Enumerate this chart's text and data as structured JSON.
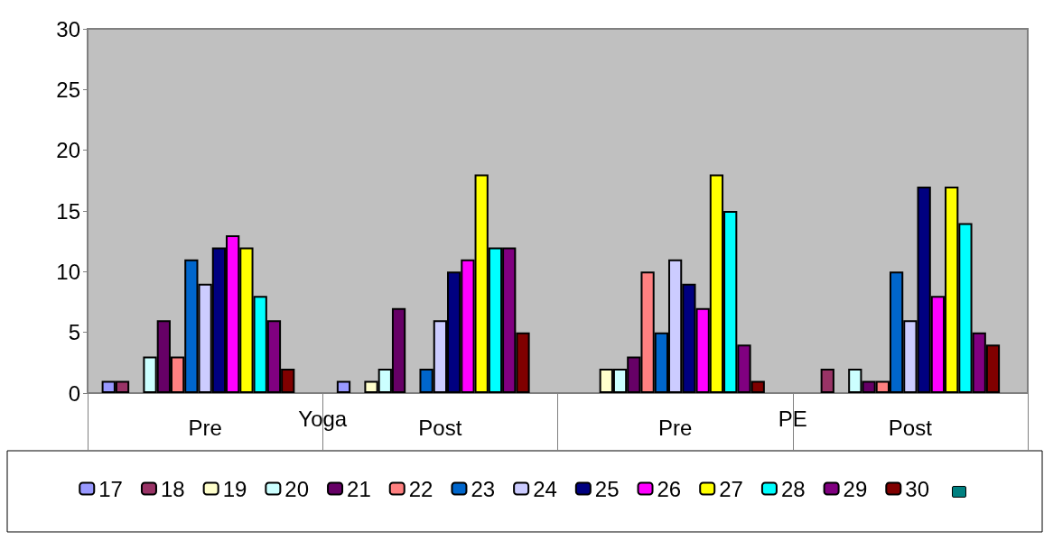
{
  "chart_data": {
    "type": "bar",
    "categories": [
      "Pre",
      "Post",
      "Pre",
      "Post"
    ],
    "annotations": [
      "Yoga",
      "PE"
    ],
    "series": [
      {
        "name": "17",
        "color": "#9999ff",
        "values": [
          1,
          1,
          0,
          0
        ]
      },
      {
        "name": "18",
        "color": "#993366",
        "values": [
          1,
          0,
          0,
          2
        ]
      },
      {
        "name": "19",
        "color": "#ffffcc",
        "values": [
          0,
          1,
          2,
          0
        ]
      },
      {
        "name": "20",
        "color": "#ccffff",
        "values": [
          3,
          2,
          2,
          2
        ]
      },
      {
        "name": "21",
        "color": "#660066",
        "values": [
          6,
          7,
          3,
          1
        ]
      },
      {
        "name": "22",
        "color": "#ff8080",
        "values": [
          3,
          0,
          10,
          1
        ]
      },
      {
        "name": "23",
        "color": "#0066cc",
        "values": [
          11,
          2,
          5,
          10
        ]
      },
      {
        "name": "24",
        "color": "#ccccff",
        "values": [
          9,
          6,
          11,
          6
        ]
      },
      {
        "name": "25",
        "color": "#000080",
        "values": [
          12,
          10,
          9,
          17
        ]
      },
      {
        "name": "26",
        "color": "#ff00ff",
        "values": [
          13,
          11,
          7,
          8
        ]
      },
      {
        "name": "27",
        "color": "#ffff00",
        "values": [
          12,
          18,
          18,
          17
        ]
      },
      {
        "name": "28",
        "color": "#00ffff",
        "values": [
          8,
          12,
          15,
          14
        ]
      },
      {
        "name": "29",
        "color": "#800080",
        "values": [
          6,
          12,
          4,
          5
        ]
      },
      {
        "name": "30",
        "color": "#800000",
        "values": [
          2,
          5,
          1,
          4
        ]
      },
      {
        "color": "#008080",
        "values": [
          null,
          null,
          null,
          null
        ]
      }
    ],
    "ylim": [
      0,
      30
    ],
    "yticks": [
      0,
      5,
      10,
      15,
      20,
      25,
      30
    ],
    "grid": false,
    "legend": "bottom"
  }
}
